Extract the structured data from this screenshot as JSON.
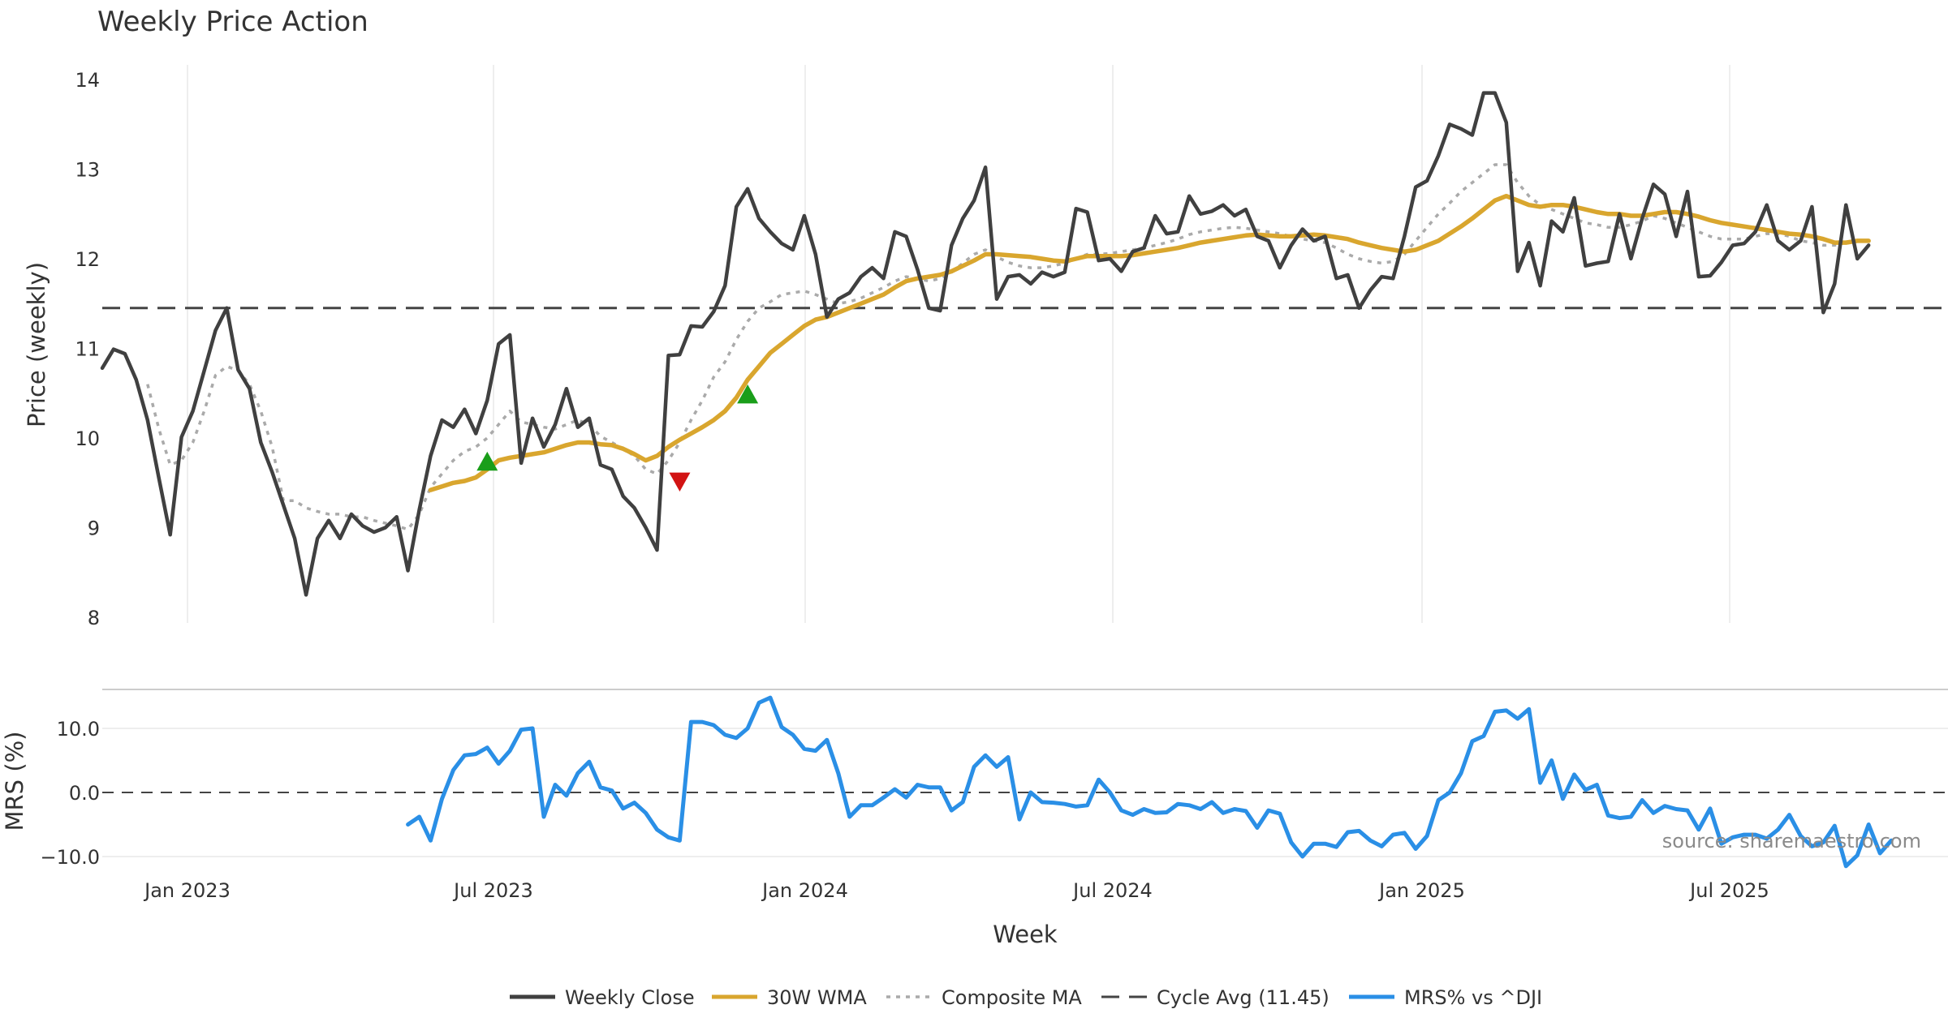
{
  "chart_data": [
    {
      "type": "line",
      "title": "Weekly Price Action",
      "ylabel": "Price (weekly)",
      "ylim": [
        8,
        14
      ],
      "yticks": [
        "8",
        "9",
        "10",
        "11",
        "12",
        "13",
        "14"
      ],
      "x_tick_labels": [
        "Jan 2023",
        "Jul 2023",
        "Jan 2024",
        "Jul 2024",
        "Jan 2025",
        "Jul 2025"
      ],
      "cycle_avg": 11.45,
      "series": [
        {
          "name": "Weekly Close",
          "color": "#404040",
          "values": [
            10.78,
            10.99,
            10.94,
            10.65,
            10.2,
            9.55,
            8.92,
            10.01,
            10.3,
            10.75,
            11.2,
            11.45,
            10.76,
            10.55,
            9.95,
            9.62,
            9.25,
            8.88,
            8.25,
            8.88,
            9.08,
            8.88,
            9.15,
            9.02,
            8.95,
            9.0,
            9.12,
            8.52,
            9.2,
            9.8,
            10.2,
            10.12,
            10.32,
            10.05,
            10.42,
            11.05,
            11.15,
            9.72,
            10.22,
            9.9,
            10.15,
            10.55,
            10.12,
            10.22,
            9.7,
            9.65,
            9.35,
            9.22,
            9.0,
            8.75,
            10.92,
            10.93,
            11.25,
            11.24,
            11.41,
            11.7,
            12.58,
            12.78,
            12.45,
            12.3,
            12.17,
            12.1,
            12.48,
            12.05,
            11.35,
            11.55,
            11.62,
            11.8,
            11.9,
            11.78,
            12.3,
            12.25,
            11.88,
            11.45,
            11.42,
            12.15,
            12.45,
            12.65,
            13.02,
            11.55,
            11.8,
            11.82,
            11.72,
            11.85,
            11.8,
            11.85,
            12.56,
            12.52,
            11.98,
            12.0,
            11.86,
            12.08,
            12.12,
            12.48,
            12.28,
            12.3,
            12.7,
            12.5,
            12.53,
            12.6,
            12.48,
            12.55,
            12.25,
            12.2,
            11.9,
            12.15,
            12.33,
            12.2,
            12.25,
            11.78,
            11.82,
            11.45,
            11.65,
            11.8,
            11.78,
            12.25,
            12.8,
            12.87,
            13.15,
            13.5,
            13.45,
            13.38,
            13.85,
            13.85,
            13.52,
            11.86,
            12.18,
            11.7,
            12.42,
            12.3,
            12.68,
            11.92,
            11.95,
            11.97,
            12.5,
            12.0,
            12.45,
            12.83,
            12.72,
            12.25,
            12.75,
            11.8,
            11.81,
            11.96,
            12.15,
            12.17,
            12.3,
            12.6,
            12.2,
            12.1,
            12.2,
            12.58,
            11.4,
            11.72,
            12.6,
            12.0,
            12.15
          ]
        },
        {
          "name": "30W WMA",
          "color": "#d9a62e",
          "values": [
            null,
            null,
            null,
            null,
            null,
            null,
            null,
            null,
            null,
            null,
            null,
            null,
            null,
            null,
            null,
            null,
            null,
            null,
            null,
            null,
            null,
            null,
            null,
            null,
            null,
            null,
            null,
            null,
            null,
            9.42,
            9.46,
            9.5,
            9.52,
            9.56,
            9.65,
            9.75,
            9.78,
            9.8,
            9.82,
            9.84,
            9.88,
            9.92,
            9.95,
            9.95,
            9.93,
            9.92,
            9.88,
            9.82,
            9.75,
            9.8,
            9.9,
            9.98,
            10.05,
            10.12,
            10.2,
            10.3,
            10.45,
            10.65,
            10.8,
            10.95,
            11.05,
            11.15,
            11.25,
            11.32,
            11.35,
            11.4,
            11.45,
            11.5,
            11.55,
            11.6,
            11.68,
            11.75,
            11.78,
            11.8,
            11.82,
            11.86,
            11.92,
            11.98,
            12.05,
            12.05,
            12.04,
            12.03,
            12.02,
            12.0,
            11.98,
            11.97,
            12.0,
            12.03,
            12.03,
            12.03,
            12.03,
            12.04,
            12.06,
            12.08,
            12.1,
            12.12,
            12.15,
            12.18,
            12.2,
            12.22,
            12.24,
            12.26,
            12.27,
            12.26,
            12.25,
            12.25,
            12.26,
            12.27,
            12.26,
            12.24,
            12.22,
            12.18,
            12.15,
            12.12,
            12.1,
            12.08,
            12.1,
            12.15,
            12.2,
            12.28,
            12.36,
            12.45,
            12.55,
            12.65,
            12.7,
            12.65,
            12.6,
            12.58,
            12.6,
            12.6,
            12.58,
            12.55,
            12.52,
            12.5,
            12.5,
            12.48,
            12.48,
            12.5,
            12.52,
            12.52,
            12.5,
            12.47,
            12.43,
            12.4,
            12.38,
            12.36,
            12.34,
            12.32,
            12.3,
            12.28,
            12.27,
            12.25,
            12.22,
            12.18,
            12.18,
            12.2,
            12.2
          ]
        },
        {
          "name": "Composite MA",
          "color": "#aaaaaa",
          "values": [
            null,
            null,
            null,
            null,
            10.6,
            10.1,
            9.7,
            9.75,
            9.95,
            10.3,
            10.7,
            10.8,
            10.75,
            10.6,
            10.3,
            9.9,
            9.3,
            9.3,
            9.22,
            9.18,
            9.15,
            9.15,
            9.12,
            9.12,
            9.08,
            9.05,
            9.02,
            8.98,
            9.15,
            9.45,
            9.6,
            9.75,
            9.85,
            9.9,
            10.0,
            10.15,
            10.3,
            10.18,
            10.15,
            10.12,
            10.1,
            10.15,
            10.2,
            10.15,
            10.02,
            9.95,
            9.88,
            9.8,
            9.65,
            9.6,
            9.75,
            9.95,
            10.2,
            10.42,
            10.68,
            10.85,
            11.1,
            11.3,
            11.45,
            11.52,
            11.6,
            11.62,
            11.64,
            11.6,
            11.55,
            11.5,
            11.52,
            11.56,
            11.62,
            11.68,
            11.75,
            11.8,
            11.78,
            11.75,
            11.78,
            11.85,
            11.95,
            12.05,
            12.1,
            12.02,
            11.96,
            11.92,
            11.9,
            11.9,
            11.92,
            11.95,
            12.0,
            12.05,
            12.05,
            12.06,
            12.08,
            12.1,
            12.12,
            12.15,
            12.18,
            12.22,
            12.27,
            12.3,
            12.32,
            12.34,
            12.35,
            12.34,
            12.32,
            12.3,
            12.28,
            12.25,
            12.22,
            12.2,
            12.18,
            12.12,
            12.05,
            12.0,
            11.97,
            11.95,
            11.97,
            12.05,
            12.2,
            12.35,
            12.5,
            12.62,
            12.75,
            12.85,
            12.95,
            13.05,
            13.05,
            12.85,
            12.7,
            12.6,
            12.55,
            12.5,
            12.45,
            12.4,
            12.38,
            12.35,
            12.35,
            12.38,
            12.42,
            12.48,
            12.45,
            12.4,
            12.35,
            12.3,
            12.25,
            12.22,
            12.22,
            12.22,
            12.25,
            12.28,
            12.28,
            12.25,
            12.2,
            12.18,
            12.15,
            12.15,
            12.18,
            12.2
          ]
        }
      ],
      "markers": [
        {
          "type": "buy",
          "index": 34,
          "y": 9.73,
          "color": "#1a9e1a"
        },
        {
          "type": "sell",
          "index": 51,
          "y": 9.52,
          "color": "#d21414"
        },
        {
          "type": "buy",
          "index": 57,
          "y": 10.48,
          "color": "#1a9e1a"
        }
      ]
    },
    {
      "type": "line",
      "ylabel": "MRS (%)",
      "xlabel": "Week",
      "ylim": [
        -13,
        16
      ],
      "yticks": [
        "10.0",
        "0.0",
        "−10.0"
      ],
      "x_tick_labels": [
        "Jan 2023",
        "Jul 2023",
        "Jan 2024",
        "Jul 2024",
        "Jan 2025",
        "Jul 2025"
      ],
      "zero_line": 0,
      "series": [
        {
          "name": "MRS% vs ^DJI",
          "color": "#2a8fe6",
          "values": [
            null,
            null,
            null,
            null,
            null,
            null,
            null,
            null,
            null,
            null,
            null,
            null,
            null,
            null,
            null,
            null,
            null,
            null,
            null,
            null,
            null,
            null,
            null,
            null,
            null,
            null,
            null,
            -5.0,
            -3.8,
            -7.5,
            -1.0,
            3.5,
            5.8,
            6.0,
            7.0,
            4.5,
            6.5,
            9.8,
            10.0,
            -3.8,
            1.2,
            -0.5,
            3.0,
            4.8,
            0.8,
            0.3,
            -2.5,
            -1.6,
            -3.2,
            -5.8,
            -7.0,
            -7.5,
            11.0,
            11.0,
            10.5,
            9.0,
            8.5,
            10.0,
            14.0,
            14.8,
            10.2,
            9.0,
            6.8,
            6.5,
            8.2,
            3.0,
            -3.8,
            -2.0,
            -2.0,
            -0.8,
            0.5,
            -0.8,
            1.2,
            0.8,
            0.8,
            -2.8,
            -1.5,
            4.0,
            5.8,
            4.0,
            5.5,
            -4.2,
            0.0,
            -1.5,
            -1.6,
            -1.8,
            -2.2,
            -2.0,
            2.0,
            0.0,
            -2.8,
            -3.5,
            -2.6,
            -3.2,
            -3.1,
            -1.8,
            -2.0,
            -2.6,
            -1.5,
            -3.2,
            -2.6,
            -2.9,
            -5.5,
            -2.8,
            -3.3,
            -7.8,
            -10.0,
            -8.0,
            -8.0,
            -8.5,
            -6.2,
            -6.0,
            -7.5,
            -8.4,
            -6.6,
            -6.3,
            -8.8,
            -6.8,
            -1.2,
            0.0,
            3.0,
            8.0,
            8.8,
            12.6,
            12.8,
            11.5,
            13.0,
            1.5,
            5.0,
            -1.0,
            2.8,
            0.4,
            1.2,
            -3.6,
            -4.0,
            -3.8,
            -1.2,
            -3.2,
            -2.1,
            -2.6,
            -2.8,
            -5.8,
            -2.5,
            -8.0,
            -7.0,
            -6.6,
            -6.6,
            -7.2,
            -5.8,
            -3.5,
            -6.8,
            -8.4,
            -7.8,
            -5.2,
            -11.5,
            -9.8,
            -5.0,
            -9.5,
            -7.5
          ]
        }
      ]
    }
  ],
  "legend": [
    {
      "label": "Weekly Close",
      "style": "solid",
      "color": "#404040"
    },
    {
      "label": "30W WMA",
      "style": "solid",
      "color": "#d9a62e"
    },
    {
      "label": "Composite MA",
      "style": "dotted",
      "color": "#aaaaaa"
    },
    {
      "label": "Cycle Avg (11.45)",
      "style": "dashed",
      "color": "#444444"
    },
    {
      "label": "MRS% vs ^DJI",
      "style": "solid",
      "color": "#2a8fe6"
    }
  ],
  "watermark": "source: sharemaestro.com"
}
